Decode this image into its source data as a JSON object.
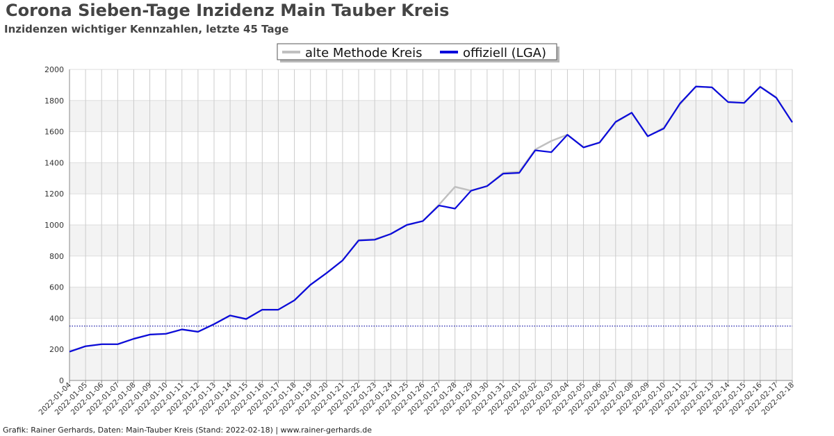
{
  "title": "Corona Sieben-Tage Inzidenz Main Tauber Kreis",
  "subtitle": "Inzidenzen wichtiger Kennzahlen, letzte 45 Tage",
  "footer": "Grafik: Rainer Gerhards, Daten: Main-Tauber Kreis (Stand: 2022-02-18) | www.rainer-gerhards.de",
  "chart_data": {
    "type": "line",
    "x": [
      "2022-01-04",
      "2022-01-05",
      "2022-01-06",
      "2022-01-07",
      "2022-01-08",
      "2022-01-09",
      "2022-01-10",
      "2022-01-11",
      "2022-01-12",
      "2022-01-13",
      "2022-01-14",
      "2022-01-15",
      "2022-01-16",
      "2022-01-17",
      "2022-01-18",
      "2022-01-19",
      "2022-01-20",
      "2022-01-21",
      "2022-01-22",
      "2022-01-23",
      "2022-01-24",
      "2022-01-25",
      "2022-01-26",
      "2022-01-27",
      "2022-01-28",
      "2022-01-29",
      "2022-01-30",
      "2022-01-31",
      "2022-02-01",
      "2022-02-02",
      "2022-02-03",
      "2022-02-04",
      "2022-02-05",
      "2022-02-06",
      "2022-02-07",
      "2022-02-08",
      "2022-02-09",
      "2022-02-10",
      "2022-02-11",
      "2022-02-12",
      "2022-02-13",
      "2022-02-14",
      "2022-02-15",
      "2022-02-16",
      "2022-02-17",
      "2022-02-18"
    ],
    "series": [
      {
        "name": "alte Methode Kreis",
        "color": "#c0c0c0",
        "values": [
          185,
          220,
          233,
          233,
          268,
          295,
          300,
          328,
          313,
          362,
          418,
          395,
          455,
          455,
          515,
          615,
          690,
          772,
          903,
          908,
          942,
          1000,
          1025,
          1130,
          1245,
          1220,
          1250,
          1335,
          1342,
          1485,
          1540,
          1580,
          1500,
          1530,
          1660,
          1720,
          1570,
          1625,
          1775,
          1890,
          1885,
          1790,
          1785,
          1890,
          1820,
          1660
        ]
      },
      {
        "name": "offiziell (LGA)",
        "color": "#0a0adc",
        "values": [
          185,
          220,
          233,
          233,
          268,
          295,
          300,
          328,
          313,
          362,
          418,
          395,
          455,
          455,
          515,
          615,
          690,
          772,
          900,
          905,
          942,
          1000,
          1025,
          1125,
          1105,
          1220,
          1250,
          1330,
          1335,
          1480,
          1468,
          1580,
          1498,
          1530,
          1663,
          1722,
          1570,
          1620,
          1780,
          1890,
          1885,
          1790,
          1785,
          1888,
          1818,
          1660
        ]
      }
    ],
    "reference_line": {
      "value": 350,
      "color": "#1c1ca8",
      "style": "dotted"
    },
    "ylim": [
      0,
      2000
    ],
    "yticks": [
      0,
      200,
      400,
      600,
      800,
      1000,
      1200,
      1400,
      1600,
      1800,
      2000
    ],
    "grid": true,
    "legend": "top-center"
  }
}
